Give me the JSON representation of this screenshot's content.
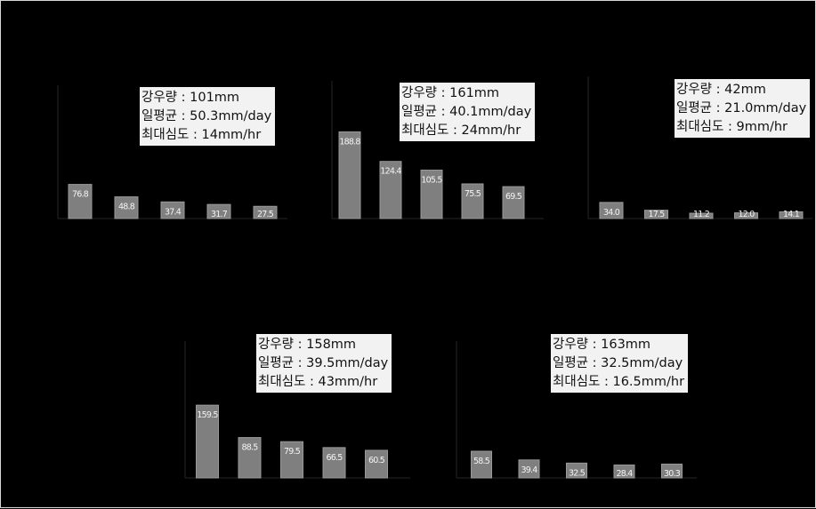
{
  "colors": {
    "background": "#000000",
    "bar": "#7f7f7f",
    "box": "#f2f2f2",
    "value_text": "#f4f4f4"
  },
  "panels": [
    {
      "info": [
        "강우량 : 101mm",
        "일평균 : 50.3mm/day",
        "최대심도 : 14mm/hr"
      ]
    },
    {
      "info": [
        "강우량 : 161mm",
        "일평균 : 40.1mm/day",
        "최대심도 : 24mm/hr"
      ]
    },
    {
      "info": [
        "강우량 : 42mm",
        "일평균 : 21.0mm/day",
        "최대심도 : 9mm/hr"
      ]
    },
    {
      "info": [
        "강우량 : 158mm",
        "일평균 : 39.5mm/day",
        "최대심도 : 43mm/hr"
      ]
    },
    {
      "info": [
        "강우량 : 163mm",
        "일평균 : 32.5mm/day",
        "최대심도 : 16.5mm/hr"
      ]
    }
  ],
  "chart_data": [
    {
      "type": "bar",
      "values": [
        76.8,
        48.8,
        37.4,
        31.7,
        27.5
      ],
      "value_labels": [
        "76.8",
        "48.8",
        "37.4",
        "31.7",
        "27.5"
      ],
      "ylim": [
        0,
        300
      ]
    },
    {
      "type": "bar",
      "values": [
        188.8,
        124.4,
        105.5,
        75.5,
        69.5
      ],
      "value_labels": [
        "188.8",
        "124.4",
        "105.5",
        "75.5",
        "69.5"
      ],
      "ylim": [
        0,
        300
      ]
    },
    {
      "type": "bar",
      "values": [
        34.0,
        17.5,
        11.2,
        12.0,
        14.1
      ],
      "value_labels": [
        "34.0",
        "17.5",
        "11.2",
        "12.0",
        "14.1"
      ],
      "ylim": [
        0,
        300
      ]
    },
    {
      "type": "bar",
      "values": [
        159.5,
        88.5,
        79.5,
        66.5,
        60.5
      ],
      "value_labels": [
        "159.5",
        "88.5",
        "79.5",
        "66.5",
        "60.5"
      ],
      "ylim": [
        0,
        300
      ]
    },
    {
      "type": "bar",
      "values": [
        58.5,
        39.4,
        32.5,
        28.4,
        30.3
      ],
      "value_labels": [
        "58.5",
        "39.4",
        "32.5",
        "28.4",
        "30.3"
      ],
      "ylim": [
        0,
        300
      ]
    }
  ]
}
